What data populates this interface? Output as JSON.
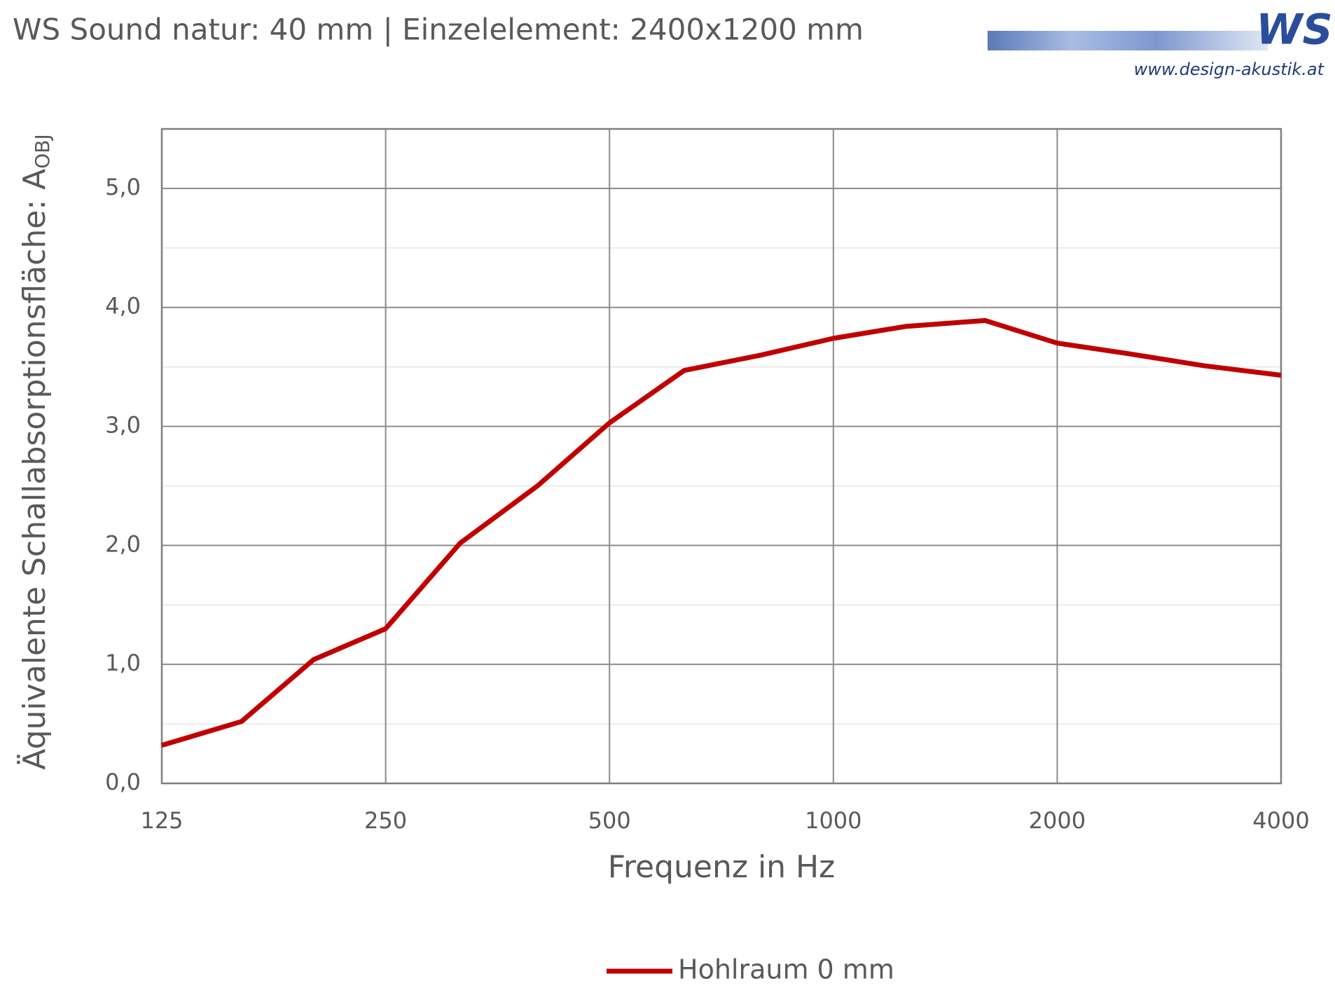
{
  "logo": {
    "text": "WS",
    "url": "www.design-akustik.at"
  },
  "chart_data": {
    "type": "line",
    "title": "WS Sound natur: 40 mm | Einzelelement: 2400x1200 mm",
    "xlabel": "Frequenz in Hz",
    "ylabel": "Äquivalente Schallabsorptionsfläche: A",
    "ylabel_sub": "OBJ",
    "x": [
      125,
      160,
      200,
      250,
      315,
      400,
      500,
      630,
      800,
      1000,
      1250,
      1600,
      2000,
      2500,
      3150,
      4000
    ],
    "series": [
      {
        "name": "Hohlraum 0 mm",
        "color": "#c00000",
        "values": [
          0.32,
          0.52,
          1.04,
          1.3,
          2.02,
          2.5,
          3.03,
          3.47,
          3.6,
          3.74,
          3.84,
          3.89,
          3.7,
          3.61,
          3.51,
          3.43
        ]
      }
    ],
    "xscale": "log",
    "xlim": [
      125,
      4000
    ],
    "xticks": [
      125,
      250,
      500,
      1000,
      2000,
      4000
    ],
    "ylim": [
      0,
      5.5
    ],
    "yticks": [
      {
        "value": 0,
        "label": "0,0"
      },
      {
        "value": 1,
        "label": "1,0"
      },
      {
        "value": 2,
        "label": "2,0"
      },
      {
        "value": 3,
        "label": "3,0"
      },
      {
        "value": 4,
        "label": "4,0"
      },
      {
        "value": 5,
        "label": "5,0"
      }
    ],
    "grid": true,
    "minor_grid": true,
    "legend": "bottom"
  }
}
